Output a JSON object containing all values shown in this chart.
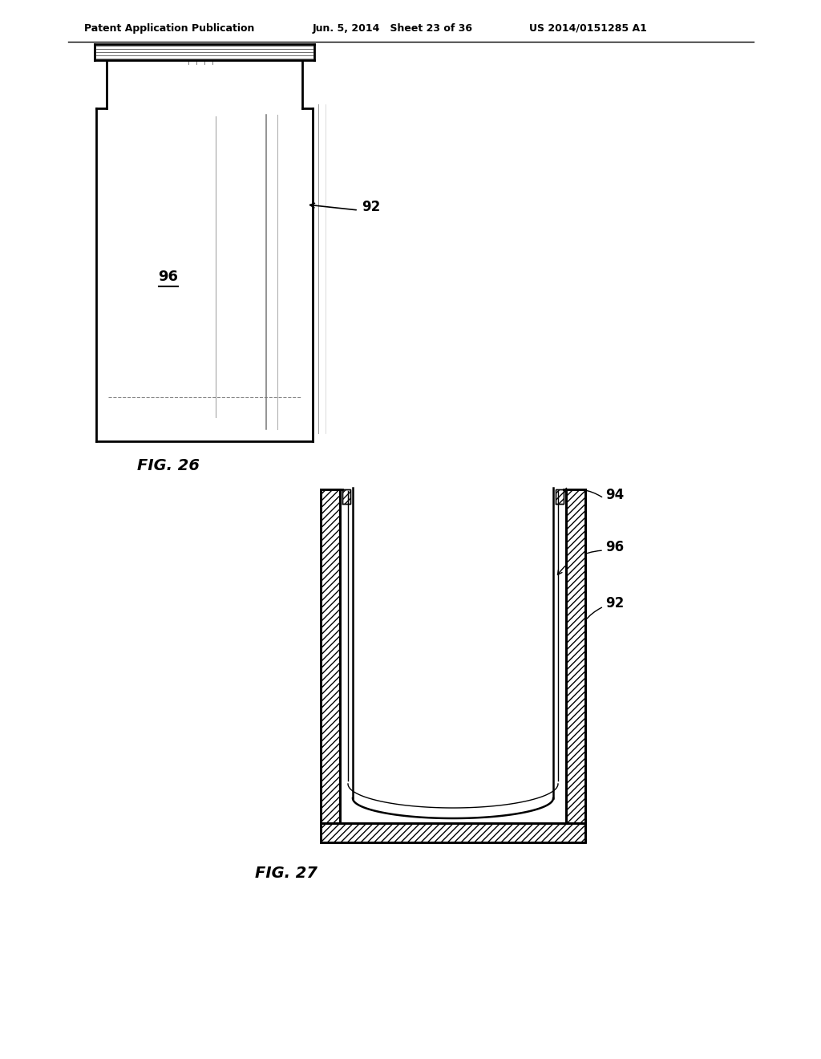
{
  "background_color": "#ffffff",
  "header_left": "Patent Application Publication",
  "header_center": "Jun. 5, 2014   Sheet 23 of 36",
  "header_right": "US 2014/0151285 A1",
  "fig26_label": "FIG. 26",
  "fig27_label": "FIG. 27"
}
